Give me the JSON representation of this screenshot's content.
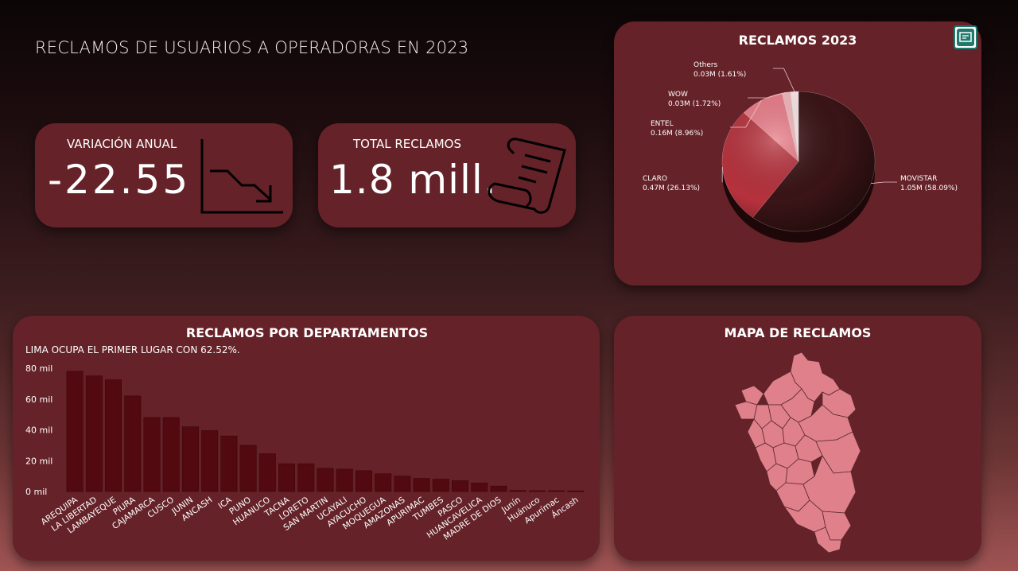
{
  "header": {
    "title": "RECLAMOS DE USUARIOS A OPERADORAS EN 2023"
  },
  "kpis": {
    "variacion": {
      "label": "VARIACIÓN ANUAL",
      "value": "-22.55",
      "icon": "trend-down-icon"
    },
    "total": {
      "label": "TOTAL RECLAMOS",
      "value": "1.8 mill.",
      "icon": "document-scroll-icon"
    }
  },
  "pie_card": {
    "title": "RECLAMOS 2023",
    "focus_icon": "focus-mode-icon",
    "chart_data": {
      "type": "pie",
      "title": "RECLAMOS 2023",
      "slices": [
        {
          "name": "MOVISTAR",
          "label": "1.05M (58.09%)",
          "value": 1.05,
          "percent": 58.09,
          "color": "#3a1416"
        },
        {
          "name": "CLARO",
          "label": "0.47M (26.13%)",
          "value": 0.47,
          "percent": 26.13,
          "color": "#b6323d"
        },
        {
          "name": "ENTEL",
          "label": "0.16M (8.96%)",
          "value": 0.16,
          "percent": 8.96,
          "color": "#e87c88"
        },
        {
          "name": "WOW",
          "label": "0.03M (1.72%)",
          "value": 0.03,
          "percent": 1.72,
          "color": "#f0b6bc"
        },
        {
          "name": "Others",
          "label": "0.03M (1.61%)",
          "value": 0.03,
          "percent": 1.61,
          "color": "#f7e4e6"
        }
      ]
    }
  },
  "bar_card": {
    "title": "RECLAMOS POR DEPARTAMENTOS",
    "subtitle": "LIMA OCUPA EL PRIMER LUGAR CON 62.52%.",
    "chart_data": {
      "type": "bar",
      "categories": [
        "AREQUIPA",
        "LA LIBERTAD",
        "LAMBAYEQUE",
        "PIURA",
        "CAJAMARCA",
        "CUSCO",
        "JUNIN",
        "ANCASH",
        "ICA",
        "PUNO",
        "HUANUCO",
        "TACNA",
        "LORETO",
        "SAN MARTIN",
        "UCAYALI",
        "AYACUCHO",
        "MOQUEGUA",
        "AMAZONAS",
        "APURIMAC",
        "TUMBES",
        "PASCO",
        "HUANCAVELICA",
        "MADRE DE DIOS",
        "Junín",
        "Huánuco",
        "Apurímac",
        "Áncash"
      ],
      "values": [
        78000,
        75000,
        72500,
        62000,
        48000,
        48000,
        42000,
        39500,
        36000,
        30000,
        24500,
        18000,
        18000,
        15000,
        14500,
        13500,
        11500,
        10000,
        8500,
        8000,
        7000,
        5500,
        3500,
        700,
        500,
        500,
        400
      ],
      "yticks": [
        "0 mil",
        "20 mil",
        "40 mil",
        "60 mil",
        "80 mil"
      ],
      "ylim": [
        0,
        80000
      ],
      "bar_color": "#520a10"
    }
  },
  "map_card": {
    "title": "MAPA DE RECLAMOS",
    "map_color": "#e0808a"
  }
}
